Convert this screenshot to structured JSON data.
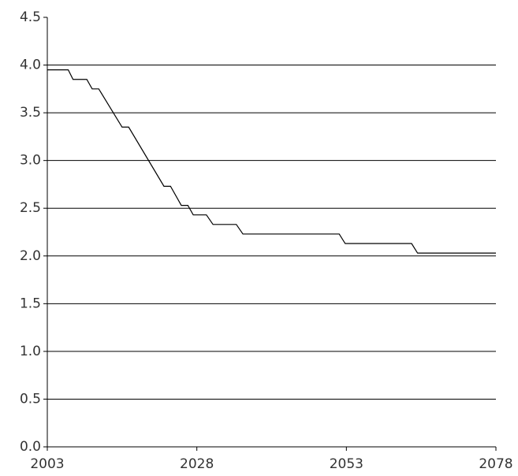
{
  "chart_data": {
    "type": "line",
    "x": [
      2003,
      2006.5,
      2007.3,
      2009.6,
      2010.5,
      2011.6,
      2015.5,
      2016.6,
      2022.5,
      2023.6,
      2025.4,
      2026.5,
      2027.4,
      2029.6,
      2030.7,
      2034.6,
      2035.7,
      2051.8,
      2052.8,
      2063.9,
      2064.9,
      2078
    ],
    "values": [
      3.95,
      3.95,
      3.85,
      3.85,
      3.75,
      3.75,
      3.35,
      3.35,
      2.73,
      2.73,
      2.53,
      2.53,
      2.43,
      2.43,
      2.33,
      2.33,
      2.23,
      2.23,
      2.13,
      2.13,
      2.03,
      2.03
    ],
    "color": "#000000",
    "xlim": [
      2003,
      2078
    ],
    "xticks": [
      2003,
      2028,
      2053,
      2078
    ],
    "ylim": [
      0,
      4.5
    ],
    "yticks": [
      {
        "value": 0,
        "label": "0.0"
      },
      0.5,
      {
        "value": 1,
        "label": "1.0"
      },
      1.5,
      {
        "value": 2,
        "label": "2.0"
      },
      2.5,
      {
        "value": 3,
        "label": "3.0"
      },
      3.5,
      {
        "value": 4,
        "label": "4.0"
      },
      4.5
    ],
    "grid": true
  }
}
